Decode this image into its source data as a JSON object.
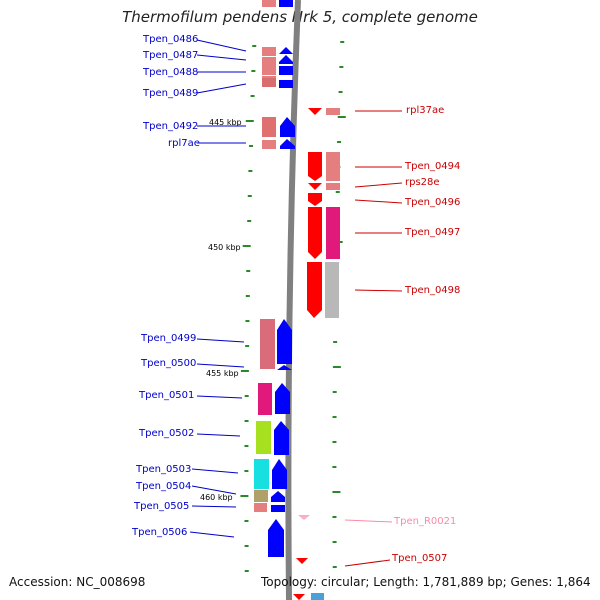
{
  "title": "Thermofilum pendens Hrk 5, complete genome",
  "footer": {
    "accession": "Accession: NC_008698",
    "info": "Topology: circular; Length: 1,781,889 bp; Genes: 1,864"
  },
  "colors": {
    "backbone": "#808080",
    "left_label": "#0000cc",
    "right_label": "#cc0000",
    "rna_label": "#ff88aa",
    "tick": "#2a8a2a"
  },
  "ticks": [
    "445 kbp",
    "450 kbp",
    "455 kbp",
    "460 kbp"
  ],
  "left_labels": [
    "Tpen_0486",
    "Tpen_0487",
    "Tpen_0488",
    "Tpen_0489",
    "Tpen_0492",
    "rpl7ae",
    "Tpen_0499",
    "Tpen_0500",
    "Tpen_0501",
    "Tpen_0502",
    "Tpen_0503",
    "Tpen_0504",
    "Tpen_0505",
    "Tpen_0506"
  ],
  "right_labels": [
    "rpl37ae",
    "Tpen_0494",
    "rps28e",
    "Tpen_0496",
    "Tpen_0497",
    "Tpen_0498",
    "Tpen_R0021",
    "Tpen_0507"
  ]
}
